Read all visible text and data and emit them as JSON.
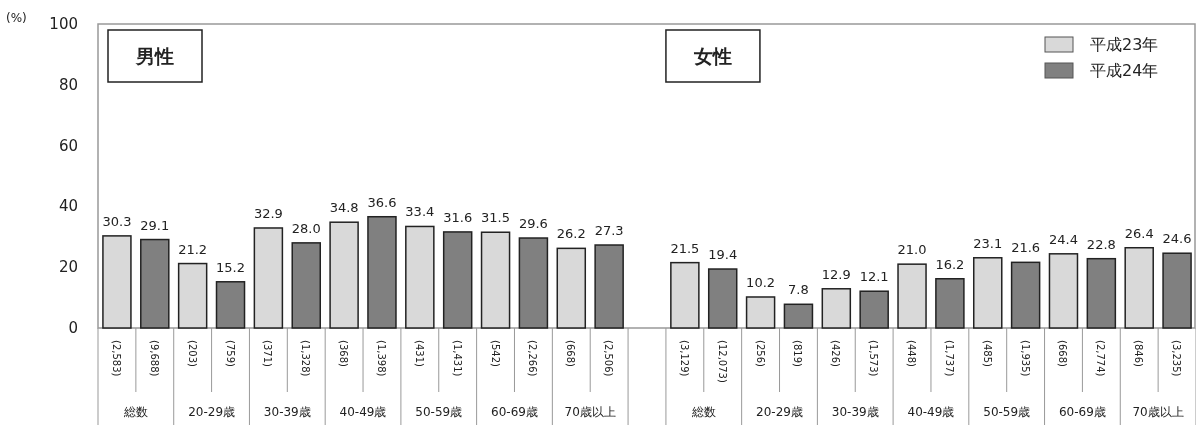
{
  "chart_data": {
    "type": "bar",
    "ylabel": "(%)",
    "categories": [
      "(2,583)",
      "(9,688)",
      "(203)",
      "(759)",
      "(371)",
      "(1,328)",
      "(368)",
      "(1,398)",
      "(431)",
      "(1,431)",
      "(542)",
      "(2,266)",
      "(668)",
      "(2,506)",
      null,
      "(3,129)",
      "(12,073)",
      "(256)",
      "(819)",
      "(426)",
      "(1,573)",
      "(448)",
      "(1,737)",
      "(485)",
      "(1,935)",
      "(668)",
      "(2,774)",
      "(846)",
      "(3,235)"
    ],
    "series": [
      {
        "name": "平成23年",
        "color": "#d9d9d9",
        "values": [
          30.3,
          null,
          21.2,
          null,
          32.9,
          null,
          34.8,
          null,
          33.4,
          null,
          31.5,
          null,
          26.2,
          null,
          null,
          21.5,
          null,
          10.2,
          null,
          12.9,
          null,
          21.0,
          null,
          23.1,
          null,
          24.4,
          null,
          26.4,
          null
        ],
        "value_labels": [
          "30.3",
          null,
          "21.2",
          null,
          "32.9",
          null,
          "34.8",
          null,
          "33.4",
          null,
          "31.5",
          null,
          "26.2",
          null,
          null,
          "21.5",
          null,
          "10.2",
          null,
          "12.9",
          null,
          "21.0",
          null,
          "23.1",
          null,
          "24.4",
          null,
          "26.4",
          null
        ]
      },
      {
        "name": "平成24年",
        "color": "#808080",
        "values": [
          null,
          29.1,
          null,
          15.2,
          null,
          28.0,
          null,
          36.6,
          null,
          31.6,
          null,
          29.6,
          null,
          27.3,
          null,
          null,
          19.4,
          null,
          7.8,
          null,
          12.1,
          null,
          16.2,
          null,
          21.6,
          null,
          22.8,
          null,
          24.6
        ],
        "value_labels": [
          null,
          "29.1",
          null,
          "15.2",
          null,
          "28.0",
          null,
          "36.6",
          null,
          "31.6",
          null,
          "29.6",
          null,
          "27.3",
          null,
          null,
          "19.4",
          null,
          "7.8",
          null,
          "12.1",
          null,
          "16.2",
          null,
          "21.6",
          null,
          "22.8",
          null,
          "24.6"
        ]
      }
    ],
    "annotations": [
      "男性",
      "女性",
      "総数",
      "20-29歳",
      "30-39歳",
      "40-49歳",
      "50-59歳",
      "60-69歳",
      "70歳以上",
      "総数",
      "20-29歳",
      "30-39歳",
      "40-49歳",
      "50-59歳",
      "60-69歳",
      "70歳以上"
    ],
    "ylim": [
      0,
      100
    ],
    "yticks": [
      0,
      20,
      40,
      60,
      80,
      100
    ],
    "grid": false,
    "legend": "top right"
  }
}
